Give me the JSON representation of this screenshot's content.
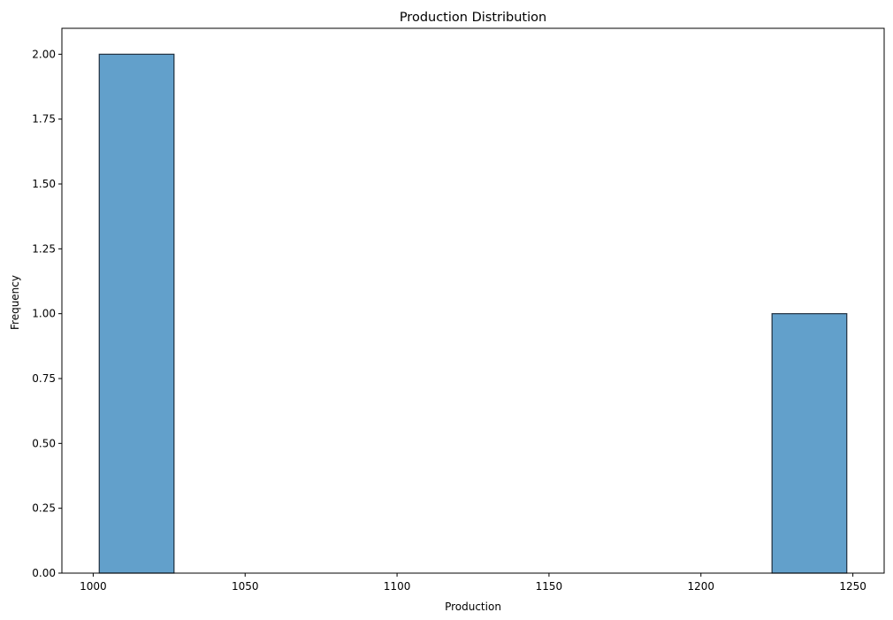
{
  "chart_data": {
    "type": "bar",
    "title": "Production Distribution",
    "xlabel": "Production",
    "ylabel": "Frequency",
    "bins": [
      {
        "x0": 1002,
        "x1": 1026.6,
        "count": 2
      },
      {
        "x0": 1026.6,
        "x1": 1051.2,
        "count": 0
      },
      {
        "x0": 1051.2,
        "x1": 1075.8,
        "count": 0
      },
      {
        "x0": 1075.8,
        "x1": 1100.4,
        "count": 0
      },
      {
        "x0": 1100.4,
        "x1": 1125.0,
        "count": 0
      },
      {
        "x0": 1125.0,
        "x1": 1149.6,
        "count": 0
      },
      {
        "x0": 1149.6,
        "x1": 1174.2,
        "count": 0
      },
      {
        "x0": 1174.2,
        "x1": 1198.8,
        "count": 0
      },
      {
        "x0": 1198.8,
        "x1": 1223.4,
        "count": 0
      },
      {
        "x0": 1223.4,
        "x1": 1248,
        "count": 1
      }
    ],
    "xlim": [
      989.7,
      1260.3
    ],
    "ylim": [
      0,
      2.1
    ],
    "xticks": [
      1000,
      1050,
      1100,
      1150,
      1200,
      1250
    ],
    "xtick_labels": [
      "1000",
      "1050",
      "1100",
      "1150",
      "1200",
      "1250"
    ],
    "yticks": [
      0,
      0.25,
      0.5,
      0.75,
      1.0,
      1.25,
      1.5,
      1.75,
      2.0
    ],
    "ytick_labels": [
      "0.00",
      "0.25",
      "0.50",
      "0.75",
      "1.00",
      "1.25",
      "1.50",
      "1.75",
      "2.00"
    ],
    "grid": false,
    "colors": {
      "bar_fill": "#62a0cb",
      "bar_edge": "#1f2f3f",
      "axis": "#000000"
    }
  }
}
